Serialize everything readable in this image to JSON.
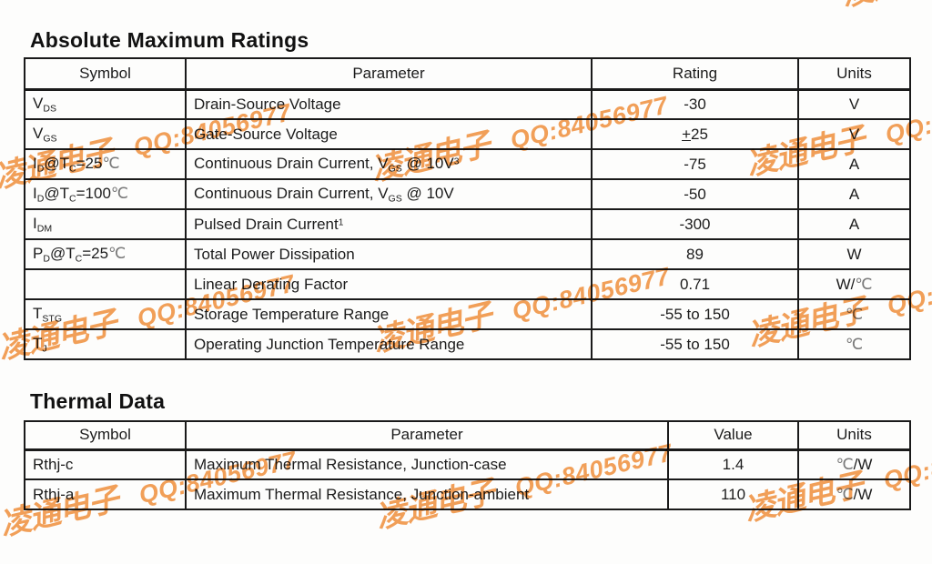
{
  "watermark": {
    "cn": "凌通电子",
    "qq": "QQ:84056977",
    "color": "#F2984B"
  },
  "abs_max": {
    "title": "Absolute Maximum Ratings",
    "headers": [
      "Symbol",
      "Parameter",
      "Rating",
      "Units"
    ],
    "rows": [
      {
        "symbol": [
          {
            "t": "V"
          },
          {
            "t": "DS",
            "s": "sub"
          }
        ],
        "parameter": [
          {
            "t": "Drain-Source Voltage"
          }
        ],
        "rating": [
          {
            "t": "-30"
          }
        ],
        "units": [
          {
            "t": "V"
          }
        ]
      },
      {
        "symbol": [
          {
            "t": "V"
          },
          {
            "t": "GS",
            "s": "sub"
          }
        ],
        "parameter": [
          {
            "t": "Gate-Source Voltage"
          }
        ],
        "rating": [
          {
            "t": "+",
            "s": "u"
          },
          {
            "t": "25"
          }
        ],
        "units": [
          {
            "t": "V"
          }
        ]
      },
      {
        "symbol": [
          {
            "t": "I"
          },
          {
            "t": "D",
            "s": "sub"
          },
          {
            "t": "@T"
          },
          {
            "t": "C",
            "s": "sub"
          },
          {
            "t": "=25"
          },
          {
            "t": "℃",
            "s": "c"
          }
        ],
        "parameter": [
          {
            "t": "Continuous Drain Current, V"
          },
          {
            "t": "GS",
            "s": "sub"
          },
          {
            "t": " @ 10V"
          },
          {
            "t": "3",
            "s": "sup"
          }
        ],
        "rating": [
          {
            "t": "-75"
          }
        ],
        "units": [
          {
            "t": "A"
          }
        ]
      },
      {
        "symbol": [
          {
            "t": "I"
          },
          {
            "t": "D",
            "s": "sub"
          },
          {
            "t": "@T"
          },
          {
            "t": "C",
            "s": "sub"
          },
          {
            "t": "=100"
          },
          {
            "t": "℃",
            "s": "c"
          }
        ],
        "parameter": [
          {
            "t": "Continuous Drain Current, V"
          },
          {
            "t": "GS",
            "s": "sub"
          },
          {
            "t": " @ 10V"
          }
        ],
        "rating": [
          {
            "t": "-50"
          }
        ],
        "units": [
          {
            "t": "A"
          }
        ]
      },
      {
        "symbol": [
          {
            "t": "I"
          },
          {
            "t": "DM",
            "s": "sub"
          }
        ],
        "parameter": [
          {
            "t": "Pulsed Drain Current"
          },
          {
            "t": "1",
            "s": "sup"
          }
        ],
        "rating": [
          {
            "t": "-300"
          }
        ],
        "units": [
          {
            "t": "A"
          }
        ]
      },
      {
        "symbol": [
          {
            "t": "P"
          },
          {
            "t": "D",
            "s": "sub"
          },
          {
            "t": "@T"
          },
          {
            "t": "C",
            "s": "sub"
          },
          {
            "t": "=25"
          },
          {
            "t": "℃",
            "s": "c"
          }
        ],
        "parameter": [
          {
            "t": "Total Power Dissipation"
          }
        ],
        "rating": [
          {
            "t": "89"
          }
        ],
        "units": [
          {
            "t": "W"
          }
        ]
      },
      {
        "symbol": [],
        "parameter": [
          {
            "t": "Linear Derating Factor"
          }
        ],
        "rating": [
          {
            "t": "0.71"
          }
        ],
        "units": [
          {
            "t": "W/"
          },
          {
            "t": "℃",
            "s": "c"
          }
        ]
      },
      {
        "symbol": [
          {
            "t": "T"
          },
          {
            "t": "STG",
            "s": "sub"
          }
        ],
        "parameter": [
          {
            "t": "Storage Temperature Range"
          }
        ],
        "rating": [
          {
            "t": "-55 to 150"
          }
        ],
        "units": [
          {
            "t": "℃",
            "s": "c"
          }
        ]
      },
      {
        "symbol": [
          {
            "t": "T"
          },
          {
            "t": "J",
            "s": "sub"
          }
        ],
        "parameter": [
          {
            "t": "Operating Junction Temperature Range"
          }
        ],
        "rating": [
          {
            "t": "-55 to 150"
          }
        ],
        "units": [
          {
            "t": "℃",
            "s": "c"
          }
        ]
      }
    ]
  },
  "thermal": {
    "title": "Thermal Data",
    "headers": [
      "Symbol",
      "Parameter",
      "Value",
      "Units"
    ],
    "rows": [
      {
        "symbol": [
          {
            "t": "Rthj-c"
          }
        ],
        "parameter": [
          {
            "t": "Maximum Thermal Resistance, Junction-case"
          }
        ],
        "rating": [
          {
            "t": "1.4"
          }
        ],
        "units": [
          {
            "t": "℃",
            "s": "c"
          },
          {
            "t": "/W"
          }
        ]
      },
      {
        "symbol": [
          {
            "t": "Rthj-a"
          }
        ],
        "parameter": [
          {
            "t": "Maximum Thermal Resistance, Junction-ambient"
          }
        ],
        "rating": [
          {
            "t": "110"
          }
        ],
        "units": [
          {
            "t": "℃",
            "s": "c"
          },
          {
            "t": "/W"
          }
        ]
      }
    ]
  }
}
